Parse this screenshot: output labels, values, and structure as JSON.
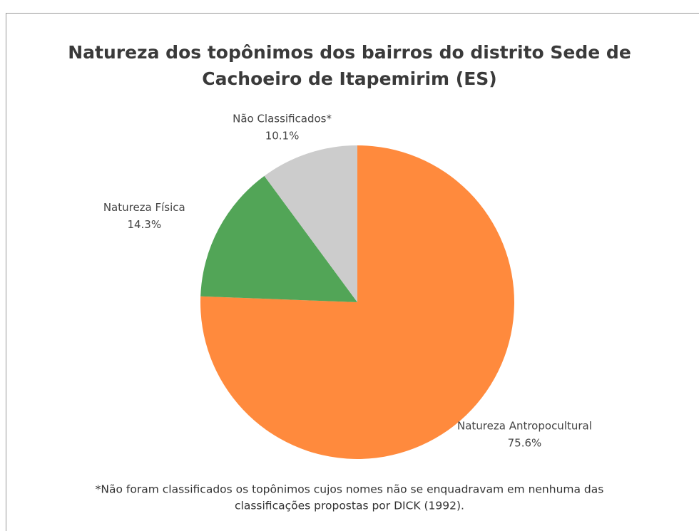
{
  "chart_data": {
    "type": "pie",
    "title": [
      "Natureza dos topônimos dos bairros do distrito Sede de",
      "Cachoeiro de Itapemirim (ES)"
    ],
    "categories": [
      "Natureza Antropocultural",
      "Natureza Física",
      "Não Classificados*"
    ],
    "values": [
      75.6,
      14.3,
      10.1
    ],
    "value_labels": [
      "75.6%",
      "14.3%",
      "10.1%"
    ],
    "colors": [
      "#ff8a3d",
      "#52a557",
      "#cccccc"
    ],
    "footnote": [
      "*Não foram classificados os topônimos cujos nomes não se enquadravam em nenhuma das",
      "classificações propostas por DICK (1992)."
    ]
  }
}
